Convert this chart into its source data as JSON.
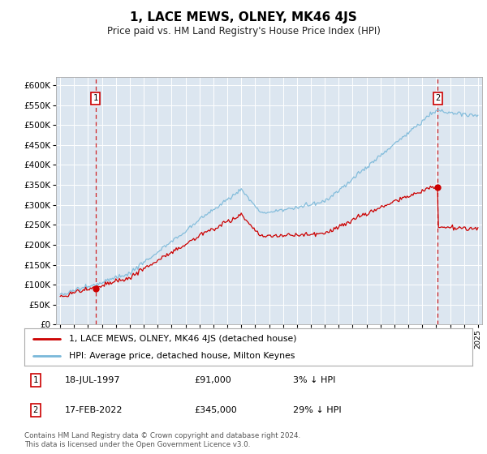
{
  "title": "1, LACE MEWS, OLNEY, MK46 4JS",
  "subtitle": "Price paid vs. HM Land Registry's House Price Index (HPI)",
  "legend_line1": "1, LACE MEWS, OLNEY, MK46 4JS (detached house)",
  "legend_line2": "HPI: Average price, detached house, Milton Keynes",
  "footer": "Contains HM Land Registry data © Crown copyright and database right 2024.\nThis data is licensed under the Open Government Licence v3.0.",
  "sale1_date": 1997.54,
  "sale1_price": 91000,
  "sale2_date": 2022.12,
  "sale2_price": 345000,
  "hpi_color": "#7ab8d9",
  "sale_color": "#cc0000",
  "dashed_color": "#cc0000",
  "plot_bg": "#dce6f0",
  "grid_color": "#ffffff",
  "ylim_min": 0,
  "ylim_max": 620000,
  "xlim_min": 1994.7,
  "xlim_max": 2025.3,
  "ann1_date": "18-JUL-1997",
  "ann1_price": "£91,000",
  "ann1_note": "3% ↓ HPI",
  "ann2_date": "17-FEB-2022",
  "ann2_price": "£345,000",
  "ann2_note": "29% ↓ HPI"
}
